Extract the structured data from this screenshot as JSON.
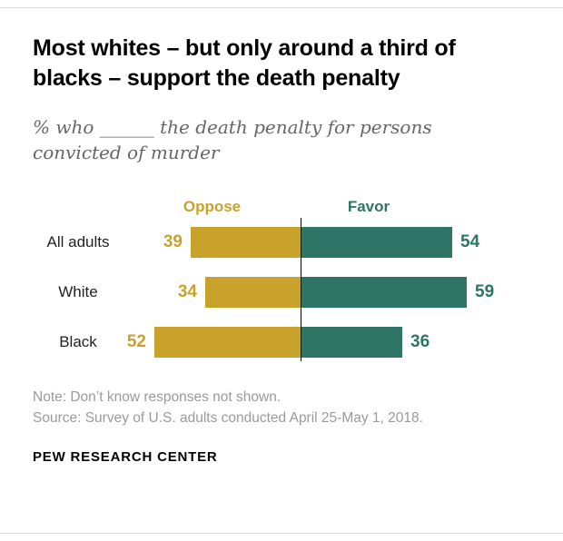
{
  "header": {
    "title": "Most whites – but only around a third of blacks – support the death penalty",
    "subtitle": "% who ______ the death penalty for persons convicted of murder"
  },
  "chart_data": {
    "type": "bar",
    "variant": "diverging-horizontal",
    "categories": [
      "All adults",
      "White",
      "Black"
    ],
    "series": [
      {
        "name": "Oppose",
        "color": "#c9a22c",
        "values": [
          39,
          34,
          52
        ]
      },
      {
        "name": "Favor",
        "color": "#2e7566",
        "values": [
          54,
          59,
          36
        ]
      }
    ],
    "value_unit": "%",
    "axis": {
      "zero_line": true,
      "grid": false
    },
    "legend_position": "top",
    "xlim_left": 60,
    "xlim_right": 65
  },
  "colors": {
    "oppose": "#c9a22c",
    "favor": "#2e7566",
    "note_gray": "#9a9a9a",
    "subtitle_gray": "#666666",
    "rule_gray": "#d9d9d9"
  },
  "notes": {
    "note_line": "Note: Don’t know responses not shown.",
    "source_line": "Source: Survey of U.S. adults conducted April 25-May 1, 2018."
  },
  "footer": {
    "brand": "PEW RESEARCH CENTER"
  }
}
